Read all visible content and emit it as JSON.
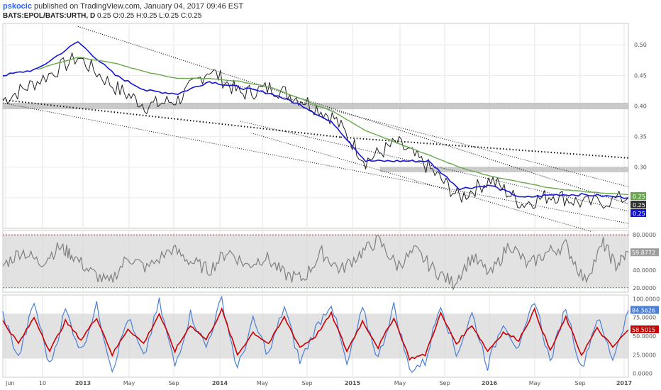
{
  "header": {
    "author": "pskocic",
    "published": "published on TradingView.com, January 04, 2017 09:46 EST"
  },
  "symbol": {
    "name": "BATS:EPOL/BATS:URTH, D",
    "ohlc": "0.25 O:0.25 H:0.25 L:0.25 C:0.25"
  },
  "colors": {
    "price": "#222222",
    "ma_fast": "#1515d6",
    "ma_slow": "#6aa84f",
    "rsi": "#808080",
    "stoch_k": "#4a7fd6",
    "stoch_d": "#cc0000",
    "zone": "#bdbdbd"
  },
  "chart_data": [
    {
      "type": "line",
      "panel": "price",
      "ylim": [
        0.2,
        0.535
      ],
      "y_ticks": [
        "0.50",
        "0.45",
        "0.40",
        "0.35",
        "0.30",
        "0.25"
      ],
      "x_ticks": [
        "Jun",
        "10",
        "2013",
        "May",
        "Sep",
        "2014",
        "May",
        "Sep",
        "2015",
        "May",
        "Sep",
        "2016",
        "May",
        "Sep",
        "2017"
      ],
      "x": [
        0,
        0.055,
        0.12,
        0.18,
        0.23,
        0.28,
        0.33,
        0.38,
        0.43,
        0.48,
        0.53,
        0.58,
        0.63,
        0.68,
        0.73,
        0.78,
        0.83,
        0.88,
        0.93,
        1.0
      ],
      "series": [
        {
          "values": [
            0.41,
            0.44,
            0.48,
            0.43,
            0.4,
            0.41,
            0.46,
            0.42,
            0.43,
            0.41,
            0.38,
            0.31,
            0.34,
            0.3,
            0.25,
            0.28,
            0.24,
            0.255,
            0.24,
            0.25
          ]
        },
        {
          "values": [
            0.45,
            0.46,
            0.505,
            0.45,
            0.425,
            0.42,
            0.44,
            0.43,
            0.42,
            0.4,
            0.37,
            0.31,
            0.31,
            0.31,
            0.265,
            0.27,
            0.25,
            0.255,
            0.255,
            0.25
          ]
        },
        {
          "values": [
            null,
            0.46,
            0.48,
            0.47,
            0.455,
            0.445,
            0.445,
            0.44,
            0.43,
            0.41,
            0.39,
            0.36,
            0.34,
            0.32,
            0.3,
            0.285,
            0.275,
            0.265,
            0.26,
            0.255
          ]
        }
      ],
      "price_labels": [
        "0.25",
        "0.25",
        "0.25"
      ]
    },
    {
      "type": "line",
      "panel": "rsi",
      "ylim": [
        15,
        85
      ],
      "y_ticks": [
        "80.0000",
        "60.0000",
        "40.0000",
        "20.0000"
      ],
      "x": [
        0,
        0.03,
        0.06,
        0.09,
        0.11,
        0.14,
        0.17,
        0.2,
        0.23,
        0.27,
        0.3,
        0.33,
        0.36,
        0.39,
        0.42,
        0.45,
        0.48,
        0.51,
        0.54,
        0.57,
        0.6,
        0.63,
        0.66,
        0.69,
        0.72,
        0.75,
        0.78,
        0.81,
        0.84,
        0.87,
        0.9,
        0.93,
        0.96,
        0.98,
        1.0
      ],
      "series": [
        {
          "values": [
            45,
            62,
            48,
            66,
            58,
            38,
            25,
            55,
            42,
            64,
            50,
            40,
            62,
            45,
            55,
            35,
            30,
            60,
            40,
            58,
            74,
            45,
            62,
            40,
            25,
            55,
            35,
            70,
            45,
            60,
            68,
            28,
            70,
            45,
            60
          ]
        }
      ],
      "price_labels": [
        "59.8772"
      ]
    },
    {
      "type": "line",
      "panel": "stochastic",
      "ylim": [
        -5,
        105
      ],
      "y_ticks": [
        "100.0000",
        "75.0000",
        "50.0000",
        "25.0000",
        "0.0000"
      ],
      "x": [
        0,
        0.025,
        0.05,
        0.075,
        0.1,
        0.125,
        0.15,
        0.175,
        0.2,
        0.225,
        0.25,
        0.275,
        0.3,
        0.325,
        0.35,
        0.375,
        0.4,
        0.425,
        0.45,
        0.475,
        0.5,
        0.525,
        0.55,
        0.575,
        0.6,
        0.625,
        0.65,
        0.675,
        0.7,
        0.725,
        0.75,
        0.775,
        0.8,
        0.825,
        0.85,
        0.875,
        0.9,
        0.925,
        0.95,
        0.975,
        1.0
      ],
      "series": [
        {
          "values": [
            80,
            20,
            95,
            10,
            85,
            30,
            90,
            5,
            75,
            20,
            95,
            10,
            80,
            35,
            100,
            5,
            70,
            25,
            90,
            15,
            60,
            95,
            10,
            85,
            20,
            90,
            5,
            15,
            95,
            25,
            80,
            10,
            70,
            30,
            100,
            15,
            90,
            5,
            75,
            20,
            84.56
          ]
        },
        {
          "values": [
            70,
            40,
            75,
            30,
            70,
            45,
            75,
            25,
            60,
            40,
            80,
            30,
            65,
            45,
            85,
            25,
            55,
            40,
            75,
            35,
            50,
            80,
            30,
            70,
            35,
            75,
            20,
            25,
            80,
            40,
            65,
            30,
            55,
            45,
            85,
            30,
            75,
            25,
            60,
            35,
            58.5
          ]
        }
      ],
      "price_labels": [
        "84.5626",
        "58.5015"
      ]
    }
  ]
}
